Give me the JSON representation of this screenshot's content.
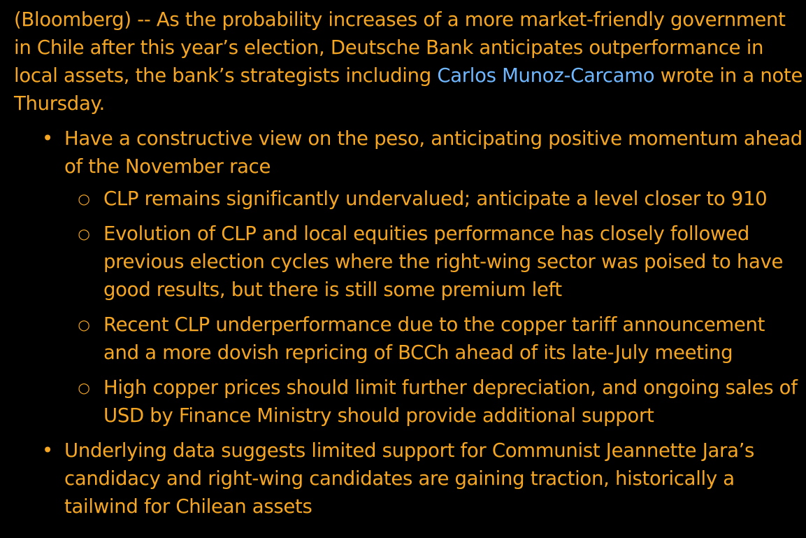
{
  "article": {
    "intro": {
      "before_link": "(Bloomberg) -- As the probability increases of a more market-friendly government in Chile after this year’s election, Deutsche Bank anticipates outperformance in local assets, the bank’s strategists including ",
      "link_text": "Carlos Munoz-Carcamo",
      "after_link": " wrote in a note Thursday."
    },
    "bullets": [
      {
        "text": "Have a constructive view on the peso, anticipating positive momentum ahead of the November race",
        "sub": [
          "CLP remains significantly undervalued; anticipate a level closer to 910",
          "Evolution of CLP and local equities performance has closely followed previous election cycles where the right-wing sector was poised to have good results, but there is still some premium left",
          "Recent CLP underperformance due to the copper tariff announcement and a more dovish repricing of BCCh ahead of its late-July meeting",
          "High copper prices should limit further depreciation, and ongoing sales of USD by Finance Ministry should provide additional support"
        ]
      },
      {
        "text": "Underlying data suggests limited support for Communist Jeannette Jara’s candidacy and right-wing candidates are gaining traction, historically a tailwind for Chilean assets"
      }
    ],
    "bullet_glyph": "•",
    "sub_bullet_glyph": "○"
  },
  "colors": {
    "background": "#000000",
    "text": "#f5a623",
    "link": "#6fb7ff"
  }
}
